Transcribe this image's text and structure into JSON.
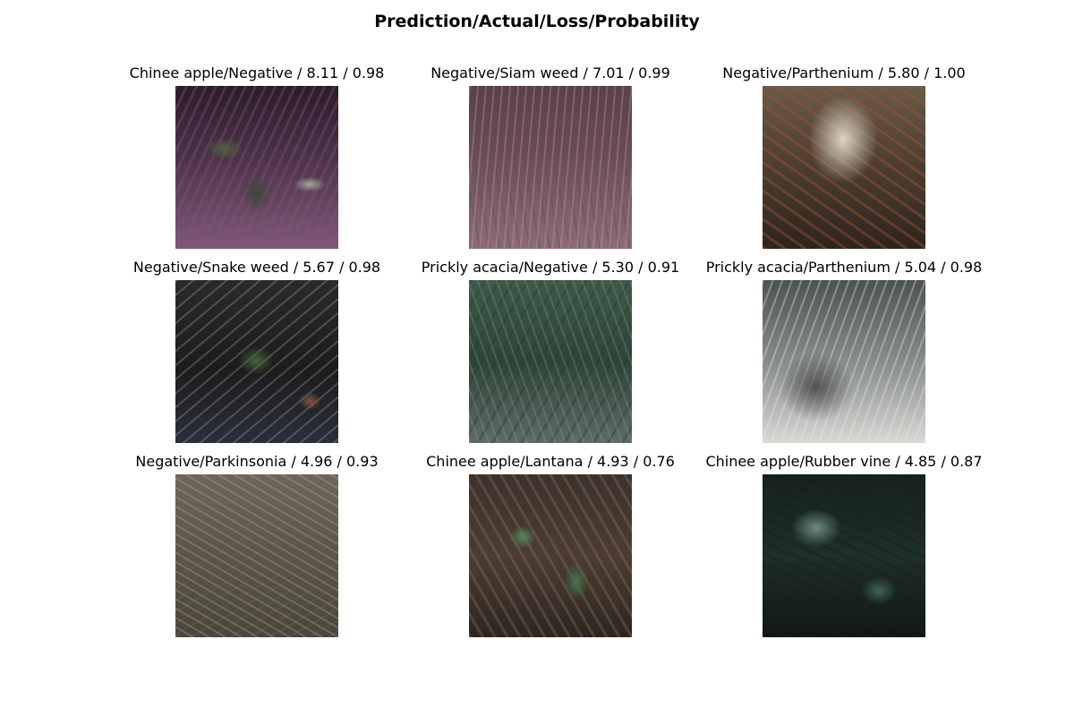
{
  "figure": {
    "title": "Prediction/Actual/Loss/Probability"
  },
  "tiles": [
    {
      "title": "Chinee apple/Negative / 8.11 / 0.98",
      "prediction": "Chinee apple",
      "actual": "Negative",
      "loss": 8.11,
      "probability": 0.98
    },
    {
      "title": "Negative/Siam weed / 7.01 / 0.99",
      "prediction": "Negative",
      "actual": "Siam weed",
      "loss": 7.01,
      "probability": 0.99
    },
    {
      "title": "Negative/Parthenium / 5.80 / 1.00",
      "prediction": "Negative",
      "actual": "Parthenium",
      "loss": 5.8,
      "probability": 1.0
    },
    {
      "title": "Negative/Snake weed / 5.67 / 0.98",
      "prediction": "Negative",
      "actual": "Snake weed",
      "loss": 5.67,
      "probability": 0.98
    },
    {
      "title": "Prickly acacia/Negative / 5.30 / 0.91",
      "prediction": "Prickly acacia",
      "actual": "Negative",
      "loss": 5.3,
      "probability": 0.91
    },
    {
      "title": "Prickly acacia/Parthenium / 5.04 / 0.98",
      "prediction": "Prickly acacia",
      "actual": "Parthenium",
      "loss": 5.04,
      "probability": 0.98
    },
    {
      "title": "Negative/Parkinsonia / 4.96 / 0.93",
      "prediction": "Negative",
      "actual": "Parkinsonia",
      "loss": 4.96,
      "probability": 0.93
    },
    {
      "title": "Chinee apple/Lantana / 4.93 / 0.76",
      "prediction": "Chinee apple",
      "actual": "Lantana",
      "loss": 4.93,
      "probability": 0.76
    },
    {
      "title": "Chinee apple/Rubber vine / 4.85 / 0.87",
      "prediction": "Chinee apple",
      "actual": "Rubber vine",
      "loss": 4.85,
      "probability": 0.87
    }
  ]
}
